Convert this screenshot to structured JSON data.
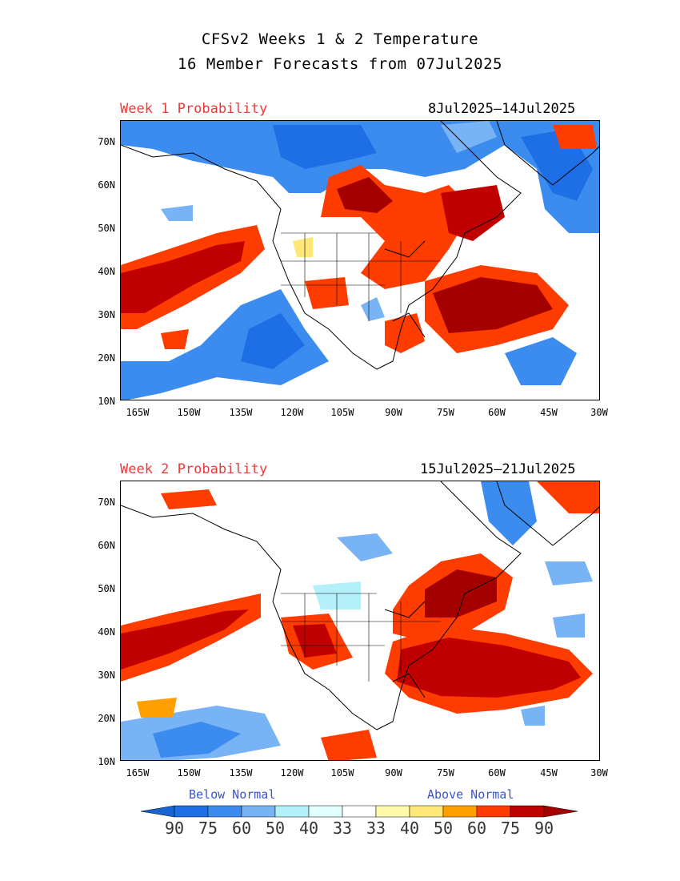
{
  "title_line1": "CFSv2 Weeks 1 & 2 Temperature",
  "title_line2": "16 Member Forecasts from 07Jul2025",
  "panels": [
    {
      "label": "Week 1 Probability",
      "dates": "8Jul2025—14Jul2025"
    },
    {
      "label": "Week 2 Probability",
      "dates": "15Jul2025—21Jul2025"
    }
  ],
  "lat_labels": [
    "70N",
    "60N",
    "50N",
    "40N",
    "30N",
    "20N",
    "10N"
  ],
  "lon_labels": [
    "165W",
    "150W",
    "135W",
    "120W",
    "105W",
    "90W",
    "75W",
    "60W",
    "45W",
    "30W"
  ],
  "legend": {
    "below_label": "Below Normal",
    "above_label": "Above Normal",
    "values": [
      "90",
      "75",
      "60",
      "50",
      "40",
      "33",
      "33",
      "40",
      "50",
      "60",
      "75",
      "90"
    ],
    "colors": [
      "#1464d2",
      "#1e6ee6",
      "#3c8cf0",
      "#78b4f5",
      "#b4f0fa",
      "#e1ffff",
      "#ffffff",
      "#fffaaa",
      "#ffe878",
      "#ffa000",
      "#ff3c00",
      "#c00000",
      "#a50000"
    ]
  }
}
